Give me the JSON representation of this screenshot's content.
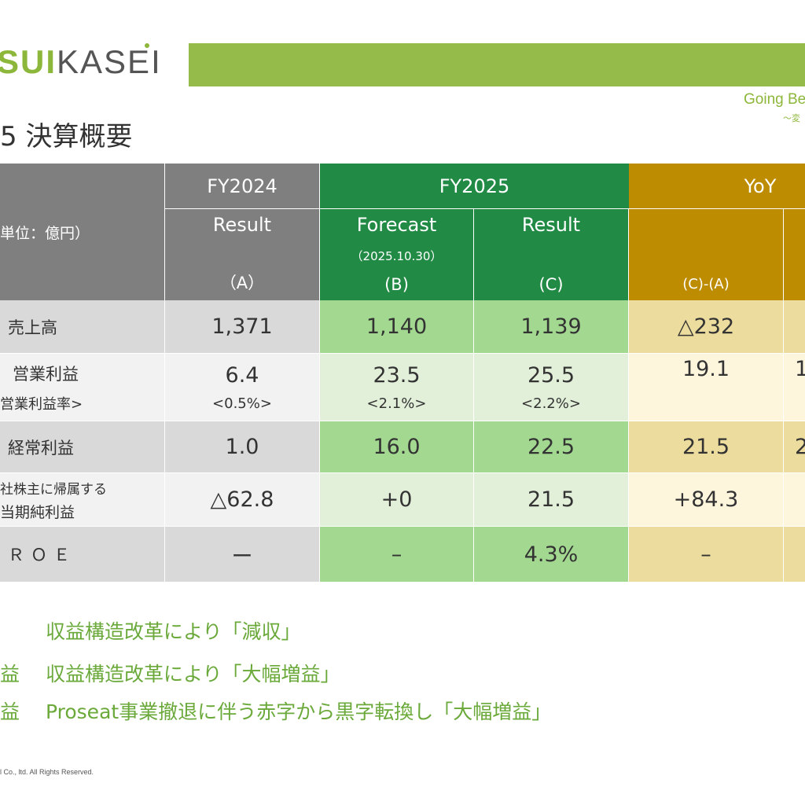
{
  "header": {
    "logo_accent": "SUI",
    "logo_rest": "KASEI",
    "tagline": "Going Be",
    "tagline_sub": "～変",
    "page_title": "5 決算概要",
    "bar_color": "#95bb4a"
  },
  "table": {
    "unit_label": "単位：億円）",
    "columns": {
      "fy2024": {
        "title": "FY2024",
        "sub": "Result",
        "tag": "（A）"
      },
      "fy2025": {
        "title": "FY2025"
      },
      "forecast": {
        "sub": "Forecast",
        "date": "（2025.10.30）",
        "tag": "(B)"
      },
      "result2025": {
        "sub": "Result",
        "tag": "(C)"
      },
      "yoy": {
        "title": "YoY",
        "tag": "(C)-(A)"
      }
    },
    "rows": [
      {
        "label": "売上高",
        "a": "1,371",
        "b": "1,140",
        "c": "1,139",
        "yoy": "△232"
      },
      {
        "label": "営業利益",
        "label_sub": "営業利益率>",
        "a": "6.4",
        "a_sub": "<0.5%>",
        "b": "23.5",
        "b_sub": "<2.1%>",
        "c": "25.5",
        "c_sub": "<2.2%>",
        "yoy": "19.1",
        "extra": "1"
      },
      {
        "label": "経常利益",
        "a": "1.0",
        "b": "16.0",
        "c": "22.5",
        "yoy": "21.5",
        "extra": "2"
      },
      {
        "label": "社株主に帰属する",
        "label_sub": "当期純利益",
        "a": "△62.8",
        "b": "+0",
        "c": "21.5",
        "yoy": "+84.3"
      },
      {
        "label": "ＲＯＥ",
        "a": "ー",
        "b": "–",
        "c": "4.3%",
        "yoy": "–"
      }
    ]
  },
  "notes": [
    {
      "lead": "",
      "text": "収益構造改革により「減収」"
    },
    {
      "lead": "益",
      "text": "収益構造改革により「大幅増益」"
    },
    {
      "lead": "益",
      "text": "Proseat事業撤退に伴う赤字から黒字転換し「大幅増益」"
    }
  ],
  "footer": {
    "copyright": "l Co., ltd. All Rights Reserved."
  }
}
